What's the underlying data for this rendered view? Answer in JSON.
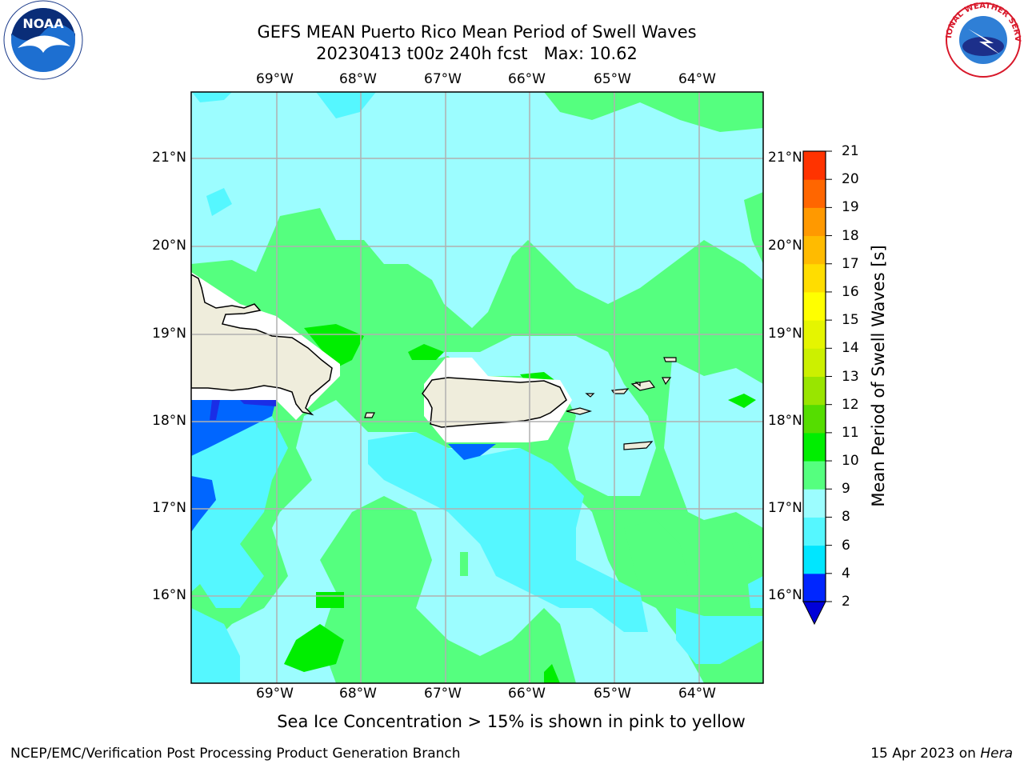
{
  "title": {
    "line1": "GEFS MEAN Puerto Rico Mean Period of Swell Waves",
    "line2": "20230413 t00z 240h fcst   Max: 10.62"
  },
  "map": {
    "lon_labels": [
      "69°W",
      "68°W",
      "67°W",
      "66°W",
      "65°W",
      "64°W"
    ],
    "lat_labels": [
      "21°N",
      "20°N",
      "19°N",
      "18°N",
      "17°N",
      "16°N"
    ],
    "lon_range": [
      -70.0,
      -63.25
    ],
    "lat_range": [
      15.0,
      21.75
    ]
  },
  "colorbar": {
    "label": "Mean Period of Swell Waves [s]",
    "ticks": [
      "2",
      "4",
      "6",
      "8",
      "9",
      "10",
      "11",
      "12",
      "13",
      "14",
      "15",
      "16",
      "17",
      "18",
      "19",
      "20",
      "21"
    ],
    "colors": [
      "#0026ff",
      "#00e6ff",
      "#55f7ff",
      "#9cfdff",
      "#55ff7f",
      "#00ee00",
      "#55dd00",
      "#99e500",
      "#ccf000",
      "#e5f500",
      "#ffff00",
      "#ffdd00",
      "#ffbb00",
      "#ff9900",
      "#ff6600",
      "#ff3300",
      "#ff0000"
    ],
    "under_color": "#0000d8"
  },
  "colors": {
    "land": "#efeddc",
    "sea_light": "#9cfdff",
    "sea_green": "#55ff7f",
    "sea_cyan": "#55f7ff",
    "deep_blue": "#0066ff"
  },
  "note": "Sea Ice Concentration > 15% is shown in pink to yellow",
  "footer": {
    "left": "NCEP/EMC/Verification Post Processing Product Generation Branch",
    "date": "15 Apr 2023 on ",
    "machine": "Hera"
  },
  "logos": {
    "noaa_text": "NOAA",
    "nws_text": "NATIONAL WEATHER SERVICE"
  }
}
